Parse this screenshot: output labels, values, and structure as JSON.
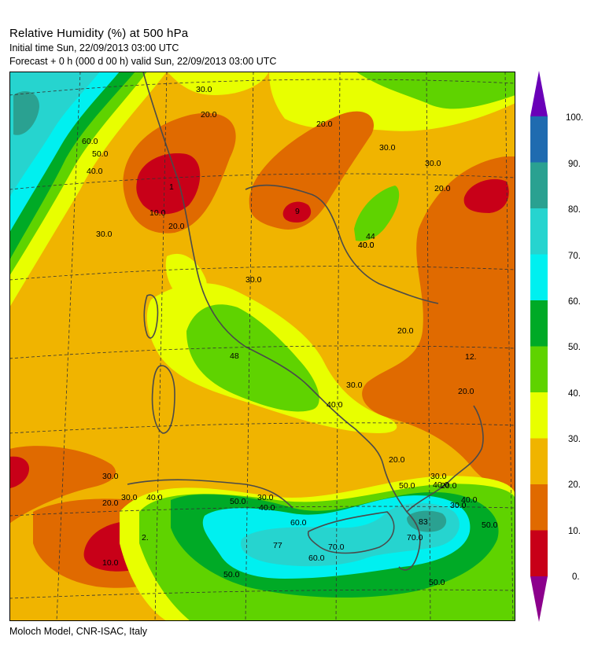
{
  "header": {
    "title": "Relative Humidity (%) at 500 hPa",
    "initial_time": "Initial time  Sun, 22/09/2013  03:00 UTC",
    "forecast": "Forecast  +    0 h   (000 d 00 h)   valid Sun, 22/09/2013 03:00 UTC"
  },
  "footer": {
    "credit": "Moloch Model, CNR-ISAC, Italy"
  },
  "legend": {
    "levels": [
      "100.",
      "90.",
      "80.",
      "70.",
      "60.",
      "50.",
      "40.",
      "30.",
      "20.",
      "10.",
      "0."
    ],
    "colors": [
      "#6a00b8",
      "#1f6bb0",
      "#2aa191",
      "#26d4cf",
      "#00f0f0",
      "#00aa26",
      "#5fd300",
      "#e8ff00",
      "#f0b400",
      "#e06a00",
      "#c80018",
      "#8c008c"
    ]
  },
  "map": {
    "field": "Relative Humidity",
    "contour_labels": [
      "30.0",
      "20.0",
      "60.0",
      "50.0",
      "40.0",
      "1",
      "10.0",
      "20.0",
      "30.0",
      "20.0",
      "30.0",
      "9",
      "44",
      "40.0",
      "30.0",
      "20.0",
      "40.0",
      "30.0",
      "48",
      "40.0",
      "30.0",
      "20.0",
      "12.",
      "20.0",
      "20.0",
      "30.0",
      "20.0",
      "30.0",
      "40.0",
      "50.0",
      "40.0",
      "30.0",
      "30.0",
      "40.0",
      "50.0",
      "60.0",
      "77",
      "70.0",
      "60.0",
      "70.0",
      "83",
      "50.0",
      "50.0",
      "2.",
      "10.0",
      "30.0",
      "40.0",
      "50.0",
      "20.0"
    ],
    "extrema": [
      "1",
      "9",
      "44",
      "48",
      "12.",
      "2.",
      "77",
      "83"
    ]
  }
}
